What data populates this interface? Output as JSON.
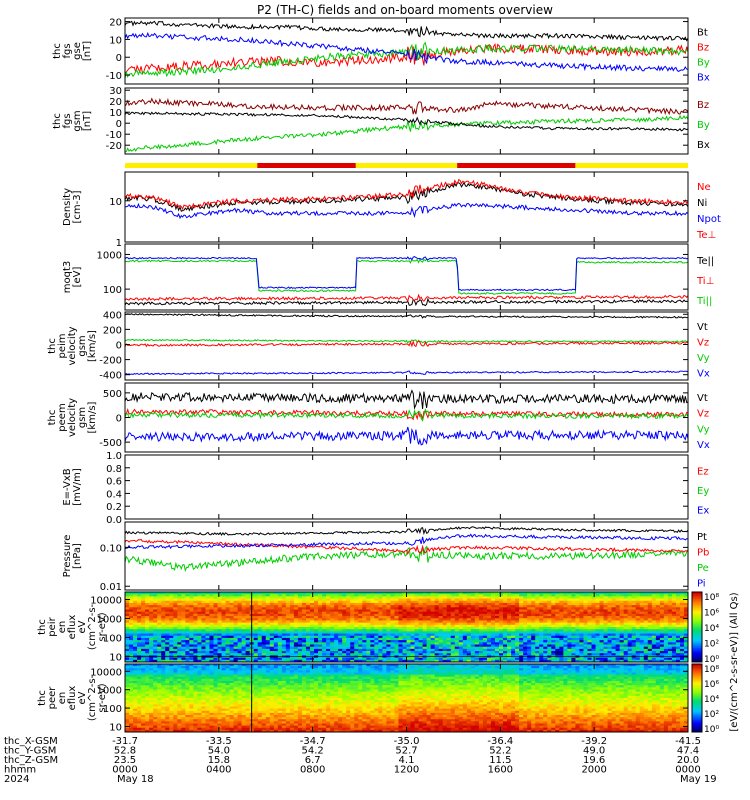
{
  "title": "P2 (TH-C) fields and on-board moments overview",
  "chart_data": [
    {
      "id": "p1",
      "type": "line",
      "ylabels": [
        "thc",
        "fgs",
        "gse",
        "[nT]"
      ],
      "ylim": [
        -15,
        22
      ],
      "ticks": [
        {
          "v": 20,
          "t": "20"
        },
        {
          "v": 10,
          "t": "10"
        },
        {
          "v": 0,
          "t": "0"
        },
        {
          "v": -10,
          "t": "-10"
        }
      ],
      "legend": [
        {
          "text": "Bt",
          "color": "#000000"
        },
        {
          "text": "Bz",
          "color": "#ff0000"
        },
        {
          "text": "By",
          "color": "#00cc00"
        },
        {
          "text": "Bx",
          "color": "#0000ff"
        }
      ],
      "series": [
        {
          "name": "Bt",
          "color": "#000000",
          "noise": 1.2,
          "x": [
            0,
            0.05,
            0.2,
            0.27,
            0.35,
            0.5,
            0.58,
            0.65,
            0.78,
            0.9,
            1
          ],
          "y": [
            19,
            19,
            17,
            17,
            16,
            15,
            13,
            12,
            12,
            11,
            10.5
          ]
        },
        {
          "name": "Bz",
          "color": "#ff0000",
          "noise": 2.5,
          "x": [
            0,
            0.05,
            0.2,
            0.27,
            0.35,
            0.5,
            0.58,
            0.65,
            0.78,
            0.9,
            1
          ],
          "y": [
            -7,
            -6,
            -3,
            -2,
            -3,
            0,
            3,
            5,
            4,
            3,
            4
          ]
        },
        {
          "name": "By",
          "color": "#00cc00",
          "noise": 2,
          "x": [
            0,
            0.05,
            0.2,
            0.27,
            0.35,
            0.5,
            0.58,
            0.65,
            0.78,
            0.9,
            1
          ],
          "y": [
            -10,
            -9,
            -6,
            -3,
            0,
            3,
            4,
            5,
            5,
            4,
            3
          ]
        },
        {
          "name": "Bx",
          "color": "#0000ff",
          "noise": 1.5,
          "x": [
            0,
            0.05,
            0.2,
            0.27,
            0.35,
            0.5,
            0.58,
            0.65,
            0.78,
            0.9,
            1
          ],
          "y": [
            12,
            12,
            10,
            8,
            6,
            2,
            -2,
            -3,
            -5,
            -6,
            -7
          ]
        }
      ]
    },
    {
      "id": "p2",
      "type": "line",
      "ylabels": [
        "thc",
        "fgs",
        "gsm",
        "[nT]"
      ],
      "ylim": [
        -28,
        32
      ],
      "ticks": [
        {
          "v": 30,
          "t": "30"
        },
        {
          "v": 20,
          "t": "20"
        },
        {
          "v": 10,
          "t": "10"
        },
        {
          "v": 0,
          "t": "0"
        },
        {
          "v": -10,
          "t": "-10"
        },
        {
          "v": -20,
          "t": "-20"
        }
      ],
      "legend": [
        {
          "text": "Bz",
          "color": "#880000"
        },
        {
          "text": "By",
          "color": "#00cc00"
        },
        {
          "text": "Bx",
          "color": "#000000"
        }
      ],
      "series": [
        {
          "name": "Bz",
          "color": "#880000",
          "noise": 2.5,
          "x": [
            0,
            0.05,
            0.2,
            0.35,
            0.5,
            0.6,
            0.65,
            0.78,
            0.9,
            1
          ],
          "y": [
            18,
            20,
            16,
            14,
            14,
            12,
            18,
            15,
            12,
            10
          ]
        },
        {
          "name": "By",
          "color": "#00cc00",
          "noise": 2,
          "x": [
            0,
            0.05,
            0.2,
            0.35,
            0.5,
            0.65,
            0.78,
            0.9,
            1
          ],
          "y": [
            -24,
            -22,
            -15,
            -10,
            -3,
            0,
            2,
            3,
            5
          ]
        },
        {
          "name": "Bx",
          "color": "#000000",
          "noise": 1.2,
          "x": [
            0,
            0.05,
            0.2,
            0.35,
            0.5,
            0.65,
            0.78,
            0.9,
            1
          ],
          "y": [
            9,
            9,
            8,
            7,
            3,
            -3,
            -5,
            -5,
            -6
          ]
        }
      ]
    },
    {
      "id": "p3",
      "type": "line",
      "log": true,
      "ylabels": [
        "Density",
        "[cm-3]"
      ],
      "ylim": [
        1,
        50
      ],
      "ticks": [
        {
          "v": 10,
          "t": "10"
        },
        {
          "v": 1,
          "t": "1"
        }
      ],
      "legend": [
        {
          "text": "Ne",
          "color": "#ff0000"
        },
        {
          "text": "Ni",
          "color": "#000000"
        },
        {
          "text": "Npot",
          "color": "#0000ff"
        },
        {
          "text": "Te⊥",
          "color": "#ff0000"
        }
      ],
      "series": [
        {
          "name": "Npot",
          "color": "#0000ff",
          "noise": 0.1,
          "x": [
            0,
            0.05,
            0.1,
            0.2,
            0.25,
            0.35,
            0.5,
            0.6,
            0.7,
            0.8,
            0.9,
            1
          ],
          "y": [
            8,
            7,
            4,
            6,
            5,
            5,
            5,
            8,
            7,
            6,
            5,
            5
          ]
        },
        {
          "name": "Ni",
          "color": "#000000",
          "noise": 0.12,
          "x": [
            0,
            0.05,
            0.1,
            0.2,
            0.35,
            0.5,
            0.6,
            0.7,
            0.8,
            0.9,
            1
          ],
          "y": [
            12,
            11,
            6,
            9,
            10,
            12,
            25,
            15,
            11,
            9,
            8
          ]
        },
        {
          "name": "Ne",
          "color": "#ff0000",
          "noise": 0.12,
          "x": [
            0,
            0.05,
            0.1,
            0.2,
            0.35,
            0.5,
            0.6,
            0.7,
            0.8,
            0.9,
            1
          ],
          "y": [
            13,
            12,
            7,
            10,
            11,
            14,
            30,
            16,
            12,
            10,
            9
          ]
        }
      ]
    },
    {
      "id": "p4",
      "type": "line",
      "log": true,
      "ylabels": [
        "moqt3",
        "[eV]"
      ],
      "ylim": [
        25,
        2000
      ],
      "ticks": [
        {
          "v": 1000,
          "t": "1000"
        },
        {
          "v": 100,
          "t": "100"
        }
      ],
      "legend": [
        {
          "text": "Te||",
          "color": "#000000"
        },
        {
          "text": "Ti⊥",
          "color": "#ff0000"
        },
        {
          "text": "Ti||",
          "color": "#00cc00"
        }
      ],
      "series": [
        {
          "name": "Te||",
          "color": "#000000",
          "noise": 0.08,
          "x": [
            0,
            1
          ],
          "y": [
            38,
            45
          ]
        },
        {
          "name": "Ti⊥",
          "color": "#ff0000",
          "noise": 0.08,
          "x": [
            0,
            1
          ],
          "y": [
            52,
            60
          ]
        },
        {
          "name": "Ti||",
          "color": "#00cc00",
          "noise": 0.05,
          "x": [
            0,
            0.235,
            0.236,
            0.41,
            0.411,
            0.59,
            0.591,
            0.8,
            0.801,
            1
          ],
          "y": [
            650,
            650,
            90,
            90,
            650,
            650,
            75,
            75,
            600,
            600
          ]
        },
        {
          "name": "Tblue",
          "color": "#0000ff",
          "noise": 0.04,
          "x": [
            0,
            0.235,
            0.236,
            0.41,
            0.411,
            0.59,
            0.591,
            0.8,
            0.801,
            1
          ],
          "y": [
            780,
            780,
            110,
            110,
            780,
            780,
            95,
            95,
            780,
            780
          ]
        }
      ]
    },
    {
      "id": "p5",
      "type": "line",
      "ylabels": [
        "thc",
        "peim",
        "velocity",
        "gsm",
        "[km/s]"
      ],
      "ylim": [
        -470,
        430
      ],
      "ticks": [
        {
          "v": 400,
          "t": "400"
        },
        {
          "v": 200,
          "t": "200"
        },
        {
          "v": 0,
          "t": "0"
        },
        {
          "v": -200,
          "t": "-200"
        },
        {
          "v": -400,
          "t": "-400"
        }
      ],
      "legend": [
        {
          "text": "Vt",
          "color": "#000000"
        },
        {
          "text": "Vz",
          "color": "#ff0000"
        },
        {
          "text": "Vy",
          "color": "#00cc00"
        },
        {
          "text": "Vx",
          "color": "#0000ff"
        }
      ],
      "series": [
        {
          "name": "Vt",
          "color": "#000000",
          "noise": 10,
          "x": [
            0,
            0.3,
            0.6,
            1
          ],
          "y": [
            400,
            380,
            370,
            360
          ]
        },
        {
          "name": "Vy",
          "color": "#00cc00",
          "noise": 10,
          "x": [
            0,
            0.3,
            0.6,
            1
          ],
          "y": [
            60,
            50,
            40,
            40
          ]
        },
        {
          "name": "Vz",
          "color": "#ff0000",
          "noise": 15,
          "x": [
            0,
            0.3,
            0.6,
            1
          ],
          "y": [
            -10,
            0,
            10,
            20
          ]
        },
        {
          "name": "Vx",
          "color": "#0000ff",
          "noise": 10,
          "x": [
            0,
            0.3,
            0.6,
            1
          ],
          "y": [
            -390,
            -380,
            -370,
            -360
          ]
        }
      ]
    },
    {
      "id": "p6",
      "type": "line",
      "ylabels": [
        "thc",
        "peem",
        "velocity",
        "gsm",
        "[km/s]"
      ],
      "ylim": [
        -700,
        700
      ],
      "ticks": [
        {
          "v": 500,
          "t": "500"
        },
        {
          "v": 0,
          "t": "0"
        },
        {
          "v": -500,
          "t": "-500"
        }
      ],
      "legend": [
        {
          "text": "Vt",
          "color": "#000000"
        },
        {
          "text": "Vz",
          "color": "#ff0000"
        },
        {
          "text": "Vy",
          "color": "#00cc00"
        },
        {
          "text": "Vx",
          "color": "#0000ff"
        }
      ],
      "series": [
        {
          "name": "Vt",
          "color": "#000000",
          "noise": 90,
          "x": [
            0,
            0.3,
            0.6,
            1
          ],
          "y": [
            420,
            400,
            380,
            380
          ]
        },
        {
          "name": "Vz",
          "color": "#ff0000",
          "noise": 50,
          "x": [
            0,
            0.5,
            1
          ],
          "y": [
            120,
            80,
            60
          ]
        },
        {
          "name": "Vy",
          "color": "#00cc00",
          "noise": 50,
          "x": [
            0,
            0.5,
            1
          ],
          "y": [
            50,
            40,
            30
          ]
        },
        {
          "name": "Vx",
          "color": "#0000ff",
          "noise": 90,
          "x": [
            0,
            0.3,
            0.6,
            1
          ],
          "y": [
            -400,
            -380,
            -360,
            -360
          ]
        }
      ]
    },
    {
      "id": "p7",
      "type": "line",
      "ylabels": [
        "E=-VxB",
        "[mV/m]"
      ],
      "ylim": [
        0,
        1
      ],
      "ticks": [
        {
          "v": 1.0,
          "t": "1.0"
        },
        {
          "v": 0.8,
          "t": "0.8"
        },
        {
          "v": 0.6,
          "t": "0.6"
        },
        {
          "v": 0.4,
          "t": "0.4"
        },
        {
          "v": 0.2,
          "t": "0.2"
        },
        {
          "v": 0.0,
          "t": "0.0"
        }
      ],
      "legend": [
        {
          "text": "Ez",
          "color": "#ff0000"
        },
        {
          "text": "Ey",
          "color": "#00cc00"
        },
        {
          "text": "Ex",
          "color": "#0000ff"
        }
      ],
      "series": []
    },
    {
      "id": "p8",
      "type": "line",
      "log": true,
      "ylabels": [
        "Pressure",
        "[nPa]"
      ],
      "ylim": [
        0.008,
        0.45
      ],
      "ticks": [
        {
          "v": 0.1,
          "t": "0.10"
        },
        {
          "v": 0.01,
          "t": "0.01"
        }
      ],
      "legend": [
        {
          "text": "Pt",
          "color": "#000000"
        },
        {
          "text": "Pb",
          "color": "#ff0000"
        },
        {
          "text": "Pe",
          "color": "#00cc00"
        },
        {
          "text": "Pi",
          "color": "#0000ff"
        }
      ],
      "series": [
        {
          "name": "Pe",
          "color": "#00cc00",
          "noise": 0.18,
          "x": [
            0,
            0.1,
            0.2,
            0.35,
            0.5,
            0.6,
            0.8,
            1
          ],
          "y": [
            0.05,
            0.03,
            0.04,
            0.06,
            0.07,
            0.06,
            0.06,
            0.07
          ]
        },
        {
          "name": "Pb",
          "color": "#ff0000",
          "noise": 0.08,
          "x": [
            0,
            0.2,
            0.5,
            0.6,
            0.8,
            1
          ],
          "y": [
            0.15,
            0.12,
            0.08,
            0.1,
            0.09,
            0.08
          ]
        },
        {
          "name": "Pi",
          "color": "#0000ff",
          "noise": 0.08,
          "x": [
            0,
            0.2,
            0.5,
            0.6,
            0.8,
            1
          ],
          "y": [
            0.1,
            0.11,
            0.13,
            0.2,
            0.18,
            0.17
          ]
        },
        {
          "name": "Pt",
          "color": "#000000",
          "noise": 0.06,
          "x": [
            0,
            0.2,
            0.5,
            0.6,
            0.8,
            1
          ],
          "y": [
            0.24,
            0.22,
            0.25,
            0.32,
            0.28,
            0.26
          ]
        }
      ]
    },
    {
      "id": "p9",
      "type": "heatmap",
      "ylabels": [
        "thc",
        "peir",
        "en",
        "eflux",
        "eV",
        "(cm^2-s-",
        "sr-eV)"
      ],
      "ticks": [
        {
          "v": 10000,
          "t": "10000"
        },
        {
          "v": 1000,
          "t": "1000"
        },
        {
          "v": 100,
          "t": "100"
        },
        {
          "v": 10,
          "t": "10"
        }
      ],
      "ylim": [
        5,
        25000
      ]
    },
    {
      "id": "p10",
      "type": "heatmap",
      "ylabels": [
        "thc",
        "peer",
        "en",
        "eflux",
        "eV",
        "(cm^2-s-",
        "sr-eV)"
      ],
      "ticks": [
        {
          "v": 10000,
          "t": "10000"
        },
        {
          "v": 1000,
          "t": "1000"
        },
        {
          "v": 100,
          "t": "100"
        },
        {
          "v": 10,
          "t": "10"
        }
      ],
      "ylim": [
        5,
        25000
      ]
    }
  ],
  "colorbar": {
    "label": "[eV/(cm^2-s-sr-eV)] (All Qs)",
    "ticks_top": [
      "10⁸",
      "10⁶",
      "10⁴",
      "10²",
      "10⁰"
    ],
    "ticks_bottom": [
      "10⁸",
      "10⁶",
      "10⁴",
      "10²",
      "10⁰"
    ]
  },
  "mode_bar": {
    "colors": [
      "#ffee00",
      "#dd0000",
      "#ffee00",
      "#dd0000",
      "#ffee00"
    ],
    "breaks": [
      0,
      0.235,
      0.41,
      0.59,
      0.8,
      1
    ]
  },
  "footer": {
    "row_labels": [
      "thc_X-GSM",
      "thc_Y-GSM",
      "thc_Z-GSM",
      "hhmm",
      "2024"
    ],
    "columns": [
      {
        "x": "-31.7",
        "y": "52.8",
        "z": "23.5",
        "t": "0000",
        "d": "May 18"
      },
      {
        "x": "-33.5",
        "y": "54.0",
        "z": "15.8",
        "t": "0400",
        "d": ""
      },
      {
        "x": "-34.7",
        "y": "54.2",
        "z": "6.7",
        "t": "0800",
        "d": ""
      },
      {
        "x": "-35.0",
        "y": "52.7",
        "z": "4.1",
        "t": "1200",
        "d": ""
      },
      {
        "x": "-36.4",
        "y": "52.2",
        "z": "11.5",
        "t": "1600",
        "d": ""
      },
      {
        "x": "-39.2",
        "y": "49.0",
        "z": "19.6",
        "t": "2000",
        "d": ""
      },
      {
        "x": "-41.5",
        "y": "47.4",
        "z": "20.0",
        "t": "0000",
        "d": "May 19"
      }
    ]
  }
}
